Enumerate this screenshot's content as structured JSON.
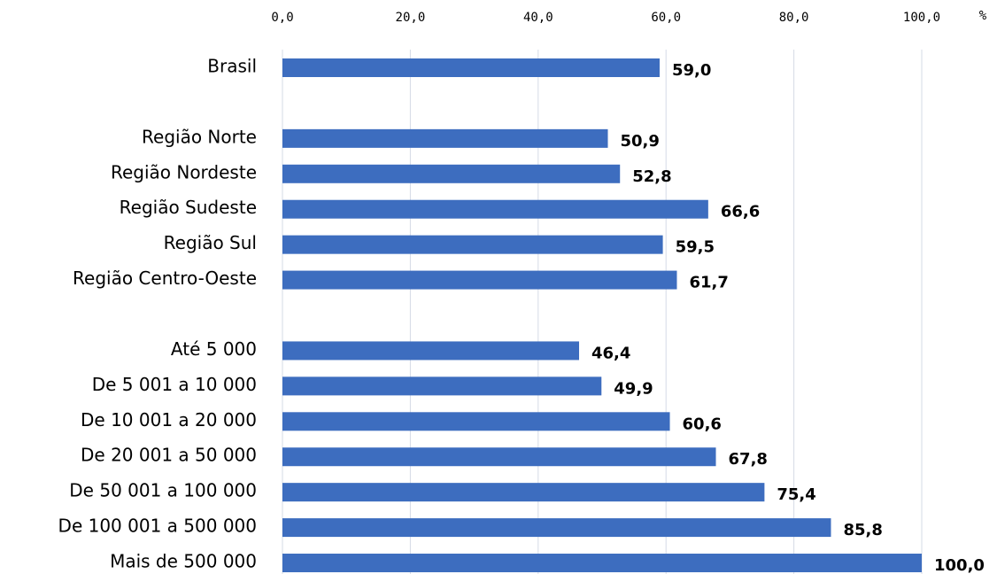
{
  "chart_data": {
    "type": "hbar",
    "xlabel": "%",
    "categories": [
      "Brasil",
      null,
      "Região Norte",
      "Região Nordeste",
      "Região Sudeste",
      "Região Sul",
      "Região Centro-Oeste",
      null,
      "Até 5 000",
      "De 5 001 a 10 000",
      "De 10 001 a 20 000",
      "De 20 001 a 50 000",
      "De 50 001 a 100 000",
      "De 100 001 a 500 000",
      "Mais de 500 000"
    ],
    "values": [
      59.0,
      null,
      50.9,
      52.8,
      66.6,
      59.5,
      61.7,
      null,
      46.4,
      49.9,
      60.6,
      67.8,
      75.4,
      85.8,
      100.0
    ],
    "value_labels": [
      "59,0",
      null,
      "50,9",
      "52,8",
      "66,6",
      "59,5",
      "61,7",
      null,
      "46,4",
      "49,9",
      "60,6",
      "67,8",
      "75,4",
      "85,8",
      "100,0"
    ],
    "color": "#3d6dbf",
    "xlim": [
      0,
      100
    ],
    "xticks": [
      {
        "value": 0,
        "label": "0,0"
      },
      {
        "value": 20,
        "label": "20,0"
      },
      {
        "value": 40,
        "label": "40,0"
      },
      {
        "value": 60,
        "label": "60,0"
      },
      {
        "value": 80,
        "label": "80,0"
      },
      {
        "value": 100,
        "label": "100,0"
      }
    ],
    "grid": true
  }
}
